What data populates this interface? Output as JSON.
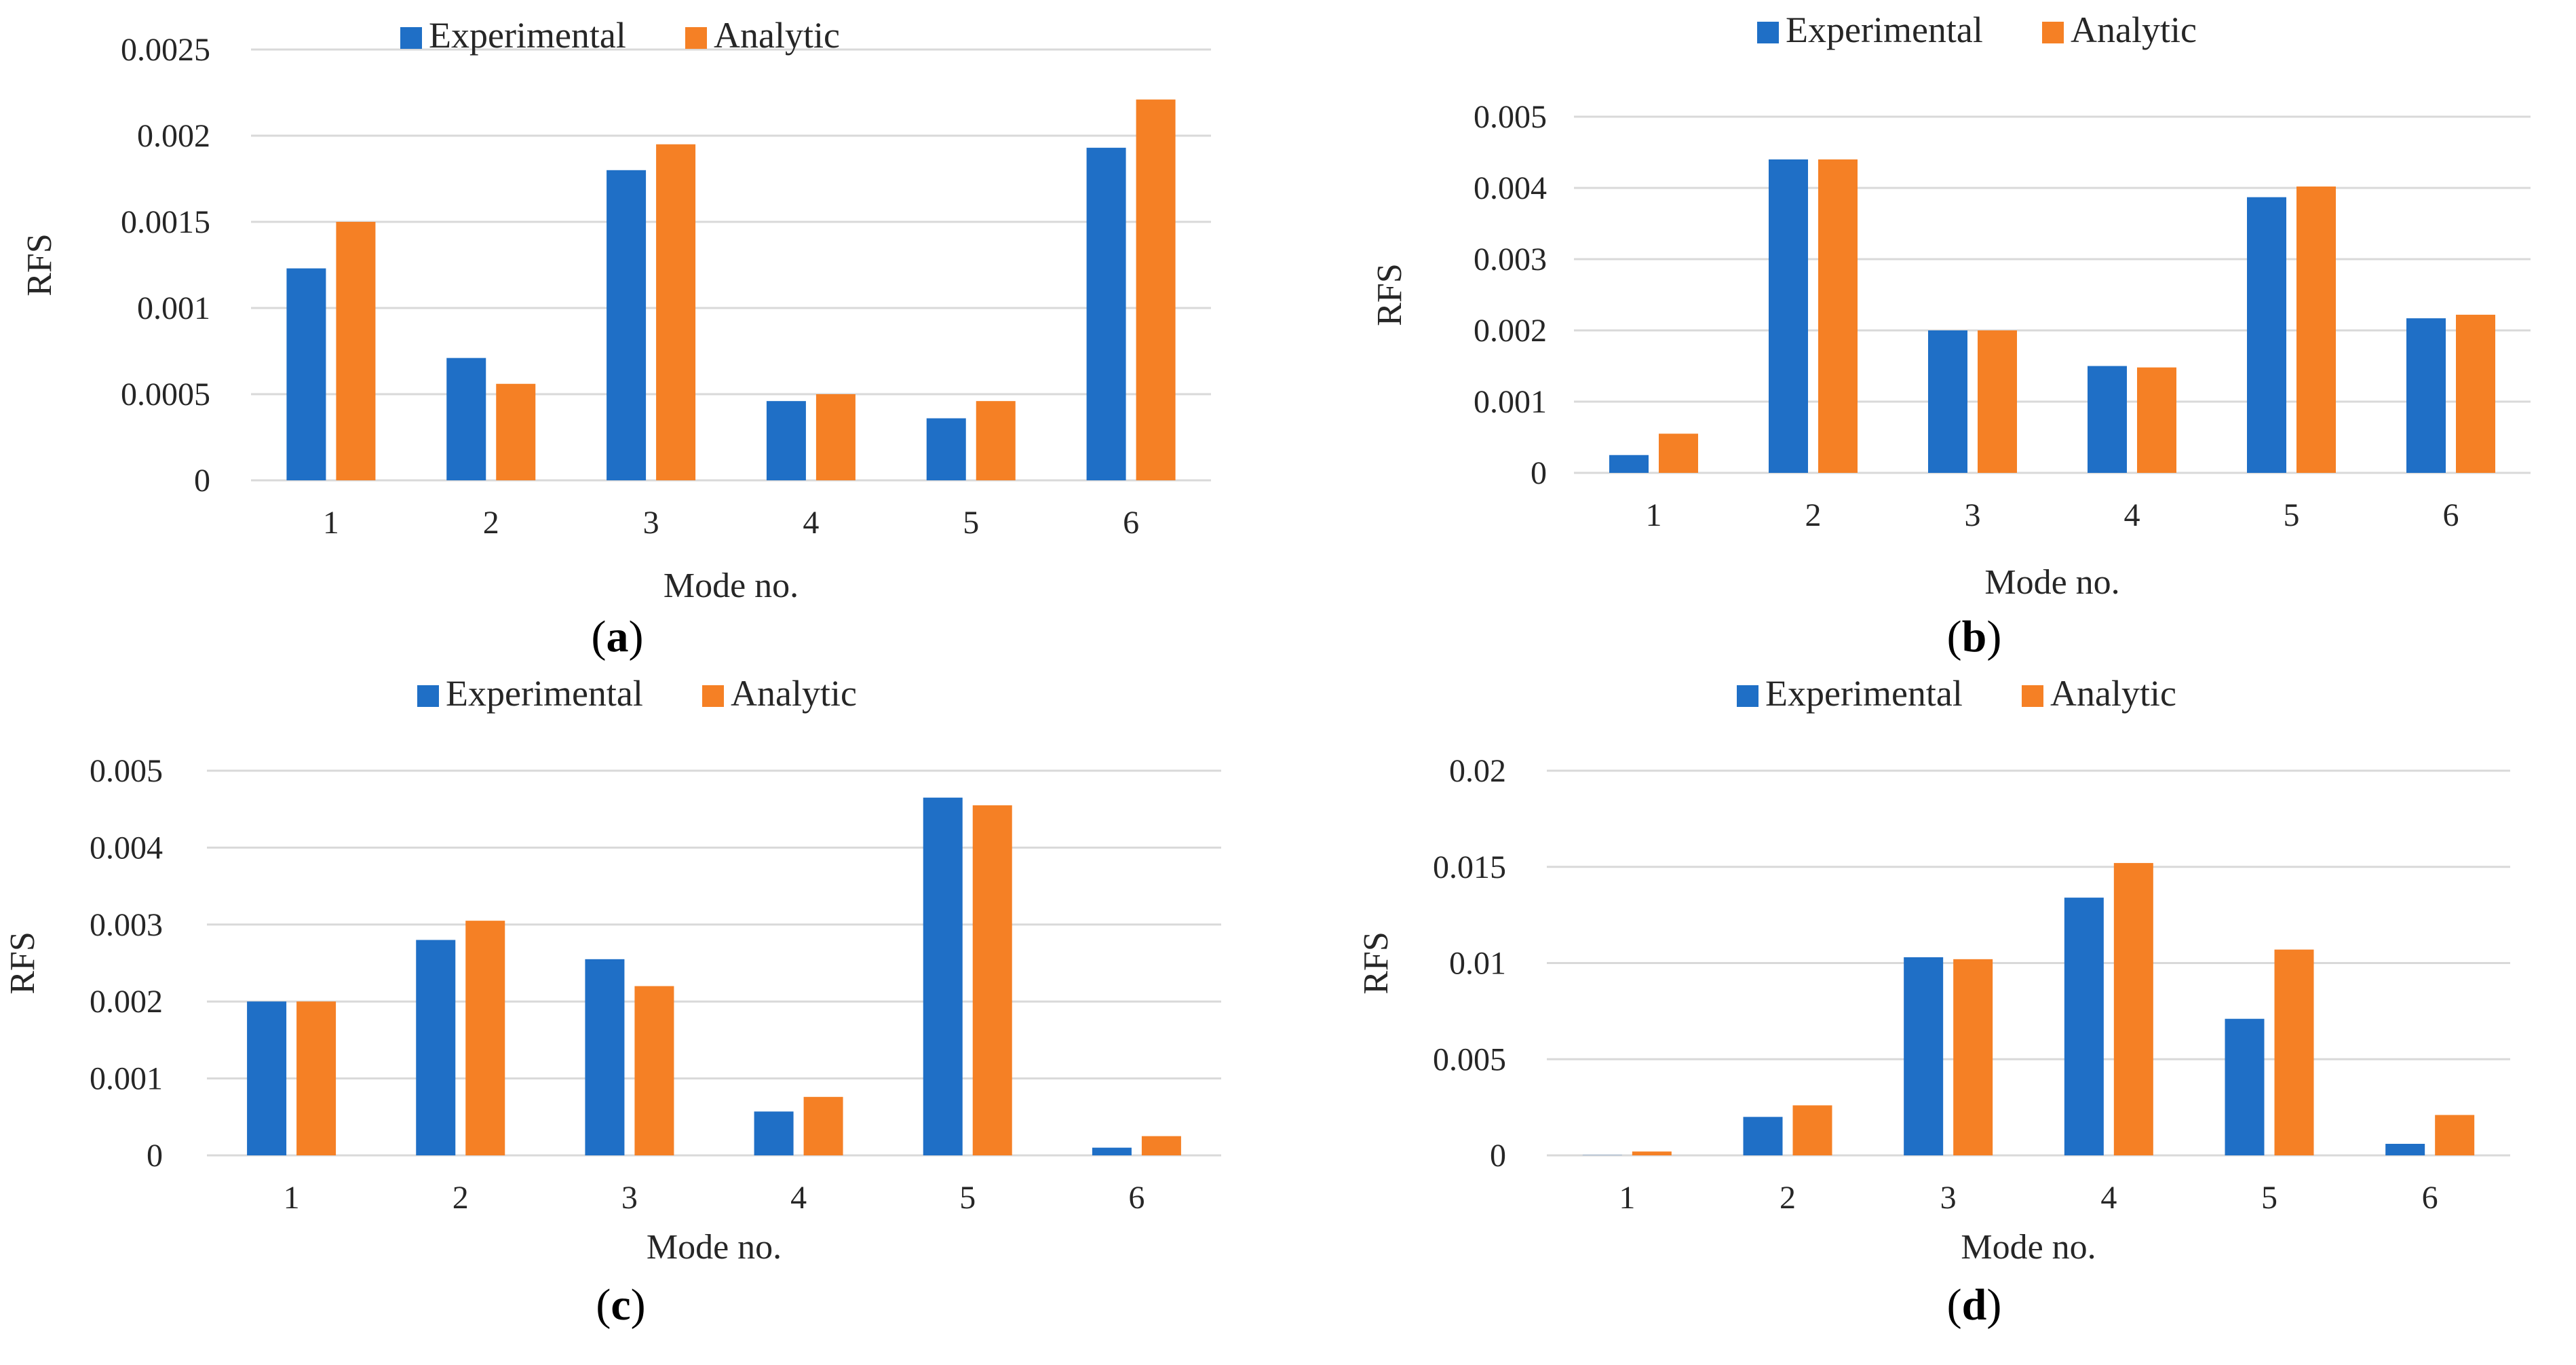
{
  "colors": {
    "experimental": "#1f6fc6",
    "analytic": "#f58025"
  },
  "legend": {
    "experimental": "Experimental",
    "analytic": "Analytic"
  },
  "chart_data": [
    {
      "type": "bar",
      "panel": "a",
      "title": "",
      "xlabel": "Mode no.",
      "ylabel": "RFS",
      "categories": [
        "1",
        "2",
        "3",
        "4",
        "5",
        "6"
      ],
      "ylim": [
        0,
        0.0025
      ],
      "yticks": [
        "0",
        "0.0005",
        "0.001",
        "0.0015",
        "0.002",
        "0.0025"
      ],
      "series": [
        {
          "name": "Experimental",
          "values": [
            0.00123,
            0.00071,
            0.0018,
            0.00046,
            0.00036,
            0.00193
          ]
        },
        {
          "name": "Analytic",
          "values": [
            0.0015,
            0.00056,
            0.00195,
            0.0005,
            0.00046,
            0.00221
          ]
        }
      ]
    },
    {
      "type": "bar",
      "panel": "b",
      "title": "",
      "xlabel": "Mode no.",
      "ylabel": "RFS",
      "categories": [
        "1",
        "2",
        "3",
        "4",
        "5",
        "6"
      ],
      "ylim": [
        0,
        0.005
      ],
      "yticks": [
        "0",
        "0.001",
        "0.002",
        "0.003",
        "0.004",
        "0.005"
      ],
      "series": [
        {
          "name": "Experimental",
          "values": [
            0.00025,
            0.0044,
            0.002,
            0.0015,
            0.00387,
            0.00217
          ]
        },
        {
          "name": "Analytic",
          "values": [
            0.00055,
            0.0044,
            0.002,
            0.00148,
            0.00402,
            0.00222
          ]
        }
      ]
    },
    {
      "type": "bar",
      "panel": "c",
      "title": "",
      "xlabel": "Mode no.",
      "ylabel": "RFS",
      "categories": [
        "1",
        "2",
        "3",
        "4",
        "5",
        "6"
      ],
      "ylim": [
        0,
        0.005
      ],
      "yticks": [
        "0",
        "0.001",
        "0.002",
        "0.003",
        "0.004",
        "0.005"
      ],
      "series": [
        {
          "name": "Experimental",
          "values": [
            0.002,
            0.0028,
            0.00255,
            0.00057,
            0.00465,
            0.0001
          ]
        },
        {
          "name": "Analytic",
          "values": [
            0.002,
            0.00305,
            0.0022,
            0.00076,
            0.00455,
            0.00025
          ]
        }
      ]
    },
    {
      "type": "bar",
      "panel": "d",
      "title": "",
      "xlabel": "Mode no.",
      "ylabel": "RFS",
      "categories": [
        "1",
        "2",
        "3",
        "4",
        "5",
        "6"
      ],
      "ylim": [
        0,
        0.02
      ],
      "yticks": [
        "0",
        "0.005",
        "0.01",
        "0.015",
        "0.02"
      ],
      "series": [
        {
          "name": "Experimental",
          "values": [
            1e-05,
            0.002,
            0.0103,
            0.0134,
            0.0071,
            0.0006
          ]
        },
        {
          "name": "Analytic",
          "values": [
            0.0002,
            0.0026,
            0.0102,
            0.0152,
            0.0107,
            0.0021
          ]
        }
      ]
    }
  ],
  "captions": [
    {
      "open": "(",
      "letter": "a",
      "close": ")"
    },
    {
      "open": "(",
      "letter": "b",
      "close": ")"
    },
    {
      "open": "(",
      "letter": "c",
      "close": ")"
    },
    {
      "open": "(",
      "letter": "d",
      "close": ")"
    }
  ]
}
